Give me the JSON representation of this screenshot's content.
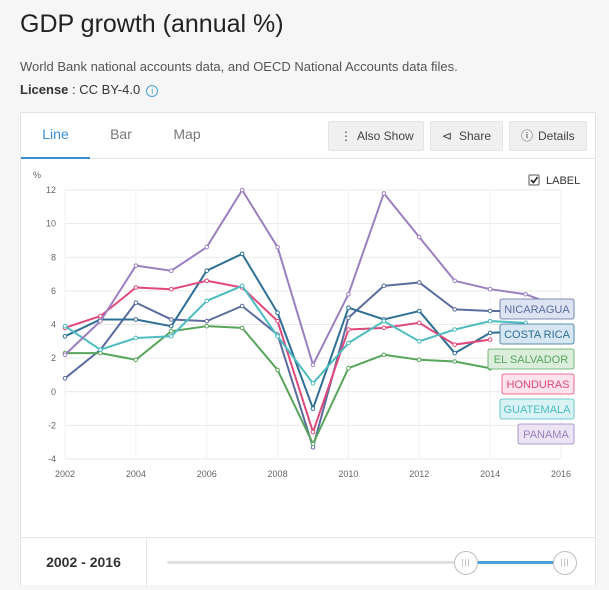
{
  "header": {
    "title": "GDP growth (annual %)",
    "source": "World Bank national accounts data, and OECD National Accounts data files.",
    "license_label": "License",
    "license_value": "CC BY-4.0",
    "info_icon": "info-icon"
  },
  "tabs": [
    {
      "label": "Line",
      "active": true
    },
    {
      "label": "Bar",
      "active": false
    },
    {
      "label": "Map",
      "active": false
    }
  ],
  "toolbar": {
    "also_show": "Also Show",
    "share": "Share",
    "details": "Details",
    "icons": {
      "also_show": "vertical-dots-icon",
      "share": "share-icon",
      "details": "info-icon"
    }
  },
  "label_toggle": {
    "label": "LABEL",
    "checked": true
  },
  "chart_data": {
    "type": "line",
    "ylabel": "%",
    "x": [
      2002,
      2003,
      2004,
      2005,
      2006,
      2007,
      2008,
      2009,
      2010,
      2011,
      2012,
      2013,
      2014,
      2015,
      2016
    ],
    "xticks": [
      2002,
      2004,
      2006,
      2008,
      2010,
      2012,
      2014,
      2016
    ],
    "ylim": [
      -4,
      12
    ],
    "yticks": [
      -4,
      -2,
      0,
      2,
      4,
      6,
      8,
      10,
      12
    ],
    "grid": true,
    "series": [
      {
        "name": "NICARAGUA",
        "color": "#5a6d9e",
        "values": [
          0.8,
          2.5,
          5.3,
          4.3,
          4.2,
          5.1,
          3.4,
          -3.3,
          4.4,
          6.3,
          6.5,
          4.9,
          4.8,
          4.8,
          null
        ]
      },
      {
        "name": "COSTA RICA",
        "color": "#2f6f95",
        "values": [
          3.3,
          4.3,
          4.3,
          3.9,
          7.2,
          8.2,
          4.7,
          -1.0,
          5.0,
          4.3,
          4.8,
          2.3,
          3.5,
          3.6,
          null
        ]
      },
      {
        "name": "EL SALVADOR",
        "color": "#58a55c",
        "values": [
          2.3,
          2.3,
          1.9,
          3.6,
          3.9,
          3.8,
          1.3,
          -3.1,
          1.4,
          2.2,
          1.9,
          1.8,
          1.4,
          null,
          null
        ]
      },
      {
        "name": "HONDURAS",
        "color": "#e0487c",
        "values": [
          3.8,
          4.5,
          6.2,
          6.1,
          6.6,
          6.2,
          4.2,
          -2.4,
          3.7,
          3.8,
          4.1,
          2.8,
          3.1,
          null,
          null
        ]
      },
      {
        "name": "GUATEMALA",
        "color": "#4cbcc0",
        "values": [
          3.9,
          2.5,
          3.2,
          3.3,
          5.4,
          6.3,
          3.3,
          0.5,
          2.9,
          4.2,
          3.0,
          3.7,
          4.2,
          4.1,
          null
        ]
      },
      {
        "name": "PANAMA",
        "color": "#9b7fbf",
        "values": [
          2.2,
          4.2,
          7.5,
          7.2,
          8.6,
          12.0,
          8.6,
          1.6,
          5.8,
          11.8,
          9.2,
          6.6,
          6.1,
          5.8,
          5.0
        ]
      }
    ],
    "legend_placement": "right"
  },
  "range": {
    "start": "2002",
    "sep": "-",
    "end": "2016",
    "min": 2002,
    "max": 2016
  }
}
